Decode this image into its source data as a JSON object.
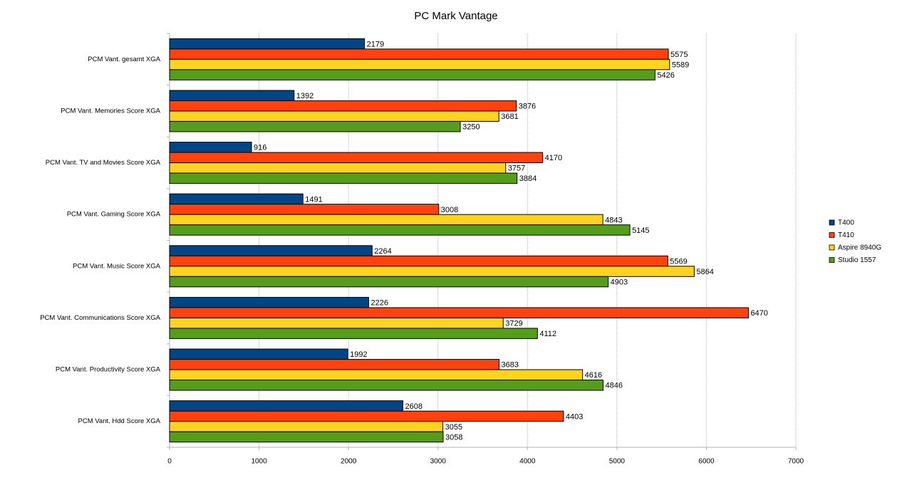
{
  "chart_data": {
    "type": "hbar",
    "title": "PC Mark Vantage",
    "categories": [
      "PCM Vant. gesamt XGA",
      "PCM Vant. Memories Score XGA",
      "PCM Vant. TV and Movies Score XGA",
      "PCM Vant. Gaming Score XGA",
      "PCM Vant. Music Score XGA",
      "PCM Vant. Communications Score XGA",
      "PCM Vant. Productivity Score XGA",
      "PCM Vant. Hdd Score XGA"
    ],
    "series": [
      {
        "name": "T400",
        "color": "#004586",
        "values": [
          2179,
          1392,
          916,
          1491,
          2264,
          2226,
          1992,
          2608
        ]
      },
      {
        "name": "T410",
        "color": "#ff420e",
        "values": [
          5575,
          3876,
          4170,
          3008,
          5569,
          6470,
          3683,
          4403
        ]
      },
      {
        "name": "Aspire 8940G",
        "color": "#ffd320",
        "values": [
          5589,
          3681,
          3757,
          4843,
          5864,
          3729,
          4616,
          3055
        ]
      },
      {
        "name": "Studio 1557",
        "color": "#579d1c",
        "values": [
          5426,
          3250,
          3884,
          5145,
          4903,
          4112,
          4846,
          3058
        ]
      }
    ],
    "xlim": [
      0,
      7000
    ],
    "xticks": [
      0,
      1000,
      2000,
      3000,
      4000,
      5000,
      6000,
      7000
    ],
    "grid": true,
    "legend": "right"
  }
}
